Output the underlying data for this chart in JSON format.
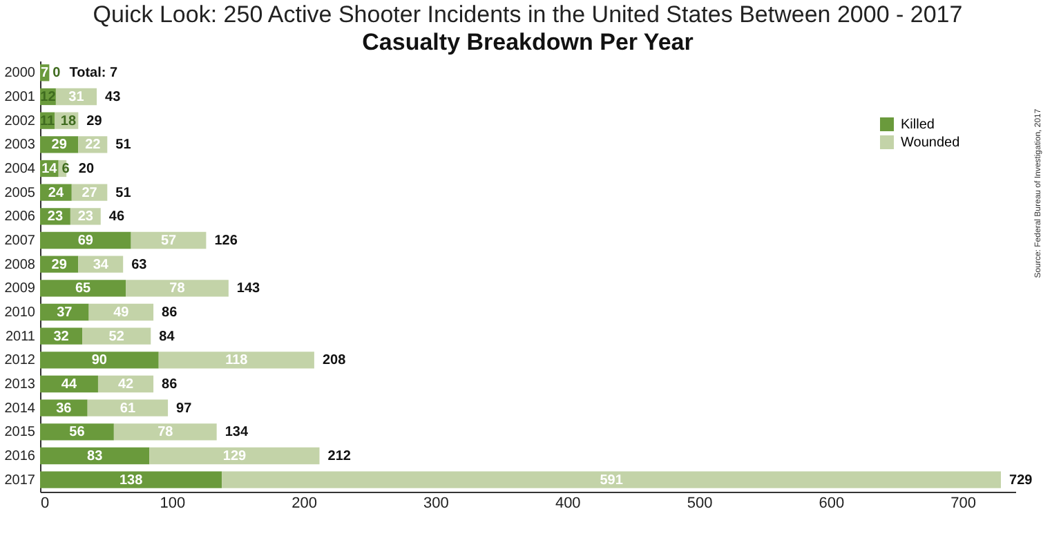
{
  "chart_data": {
    "type": "bar",
    "orientation": "horizontal",
    "stacked": true,
    "title": "Quick Look: 250 Active Shooter Incidents in the United States Between 2000 - 2017",
    "subtitle": "Casualty Breakdown Per Year",
    "categories": [
      "2000",
      "2001",
      "2002",
      "2003",
      "2004",
      "2005",
      "2006",
      "2007",
      "2008",
      "2009",
      "2010",
      "2011",
      "2012",
      "2013",
      "2014",
      "2015",
      "2016",
      "2017"
    ],
    "series": [
      {
        "name": "Killed",
        "color": "#6a9a3c",
        "values": [
          7,
          12,
          11,
          29,
          14,
          24,
          23,
          69,
          29,
          65,
          37,
          32,
          90,
          44,
          36,
          56,
          83,
          138
        ]
      },
      {
        "name": "Wounded",
        "color": "#c3d3a8",
        "values": [
          0,
          31,
          18,
          22,
          6,
          27,
          23,
          57,
          34,
          78,
          49,
          52,
          118,
          42,
          61,
          78,
          129,
          591
        ]
      }
    ],
    "totals": [
      "Total: 7",
      "43",
      "29",
      "51",
      "20",
      "51",
      "46",
      "126",
      "63",
      "143",
      "86",
      "84",
      "208",
      "86",
      "97",
      "134",
      "212",
      "729"
    ],
    "data_labels": true,
    "xlim": [
      0,
      740
    ],
    "xticks": [
      0,
      100,
      200,
      300,
      400,
      500,
      600,
      700
    ],
    "grid": false,
    "legend": "top right",
    "annotations": [
      "Source: Federal Bureau of Investigation, 2017"
    ]
  }
}
